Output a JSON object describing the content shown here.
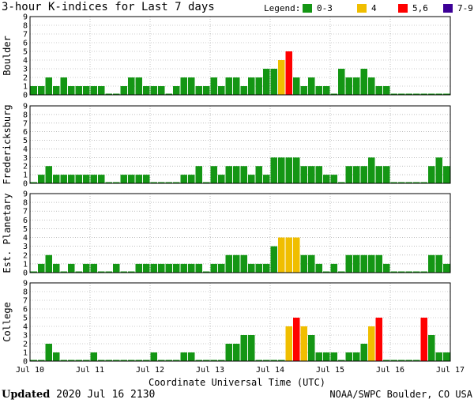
{
  "title": "3-hour K-indices for Last 7 days",
  "legend": {
    "label": "Legend:",
    "items": [
      {
        "label": "0-3",
        "color": "#149614"
      },
      {
        "label": "4",
        "color": "#f0be00"
      },
      {
        "label": "5,6",
        "color": "#ff0000"
      },
      {
        "label": "7-9",
        "color": "#3c0096"
      }
    ]
  },
  "footer": {
    "updated_label": "Updated",
    "updated_value": "2020 Jul 16 2130",
    "credit": "NOAA/SWPC Boulder, CO USA"
  },
  "chart_data": {
    "type": "bar",
    "xlabel": "Coordinate Universal Time (UTC)",
    "x_ticks": [
      "Jul 10",
      "Jul 11",
      "Jul 12",
      "Jul 13",
      "Jul 14",
      "Jul 15",
      "Jul 16",
      "Jul 17"
    ],
    "yticks": [
      "0",
      "1",
      "2",
      "3",
      "4",
      "5",
      "6",
      "7",
      "8",
      "9"
    ],
    "ylim": [
      0,
      9
    ],
    "bins_per_day": 8,
    "series": [
      {
        "name": "Boulder",
        "values": [
          1,
          1,
          2,
          1,
          2,
          1,
          1,
          1,
          1,
          1,
          0,
          0,
          1,
          2,
          2,
          1,
          1,
          1,
          0,
          1,
          2,
          2,
          1,
          1,
          2,
          1,
          2,
          2,
          1,
          2,
          2,
          3,
          3,
          4,
          5,
          2,
          1,
          2,
          1,
          1,
          0,
          3,
          2,
          2,
          3,
          2,
          1,
          1,
          0,
          0,
          0,
          0,
          0,
          0,
          0,
          0
        ]
      },
      {
        "name": "Fredericksburg",
        "values": [
          0,
          1,
          2,
          1,
          1,
          1,
          1,
          1,
          1,
          1,
          0,
          0,
          1,
          1,
          1,
          1,
          0,
          0,
          0,
          0,
          1,
          1,
          2,
          0,
          2,
          1,
          2,
          2,
          2,
          1,
          2,
          1,
          3,
          3,
          3,
          3,
          2,
          2,
          2,
          1,
          1,
          0,
          2,
          2,
          2,
          3,
          2,
          2,
          0,
          0,
          0,
          0,
          0,
          2,
          3,
          2
        ]
      },
      {
        "name": "Est. Planetary",
        "values": [
          0,
          1,
          2,
          1,
          0,
          1,
          0,
          1,
          1,
          0,
          0,
          1,
          0,
          0,
          1,
          1,
          1,
          1,
          1,
          1,
          1,
          1,
          1,
          0,
          1,
          1,
          2,
          2,
          2,
          1,
          1,
          1,
          3,
          4,
          4,
          4,
          2,
          2,
          1,
          0,
          1,
          0,
          2,
          2,
          2,
          2,
          2,
          1,
          0,
          0,
          0,
          0,
          0,
          2,
          2,
          1
        ]
      },
      {
        "name": "College",
        "values": [
          0,
          0,
          2,
          1,
          0,
          0,
          0,
          0,
          1,
          0,
          0,
          0,
          0,
          0,
          0,
          0,
          1,
          0,
          0,
          0,
          1,
          1,
          0,
          0,
          0,
          0,
          2,
          2,
          3,
          3,
          0,
          0,
          0,
          0,
          4,
          5,
          4,
          3,
          1,
          1,
          1,
          0,
          1,
          1,
          2,
          4,
          5,
          0,
          0,
          0,
          0,
          0,
          5,
          3,
          1,
          1
        ]
      }
    ],
    "colors": {
      "0-3": "#149614",
      "4": "#f0be00",
      "5,6": "#ff0000",
      "7-9": "#3c0096",
      "grid": "#999999"
    }
  }
}
